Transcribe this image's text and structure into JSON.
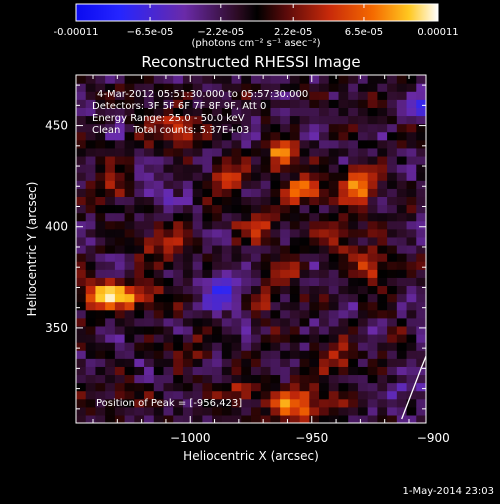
{
  "chart_data": {
    "type": "heatmap",
    "title": "Reconstructed RHESSI Image",
    "xlabel": "Heliocentric X (arcsec)",
    "ylabel": "Heliocentric Y (arcsec)",
    "xlim": [
      -1047,
      -903
    ],
    "ylim": [
      303,
      475
    ],
    "xticks": [
      -1000,
      -950,
      -900
    ],
    "xtick_labels": [
      "−1000",
      "−950",
      "−900"
    ],
    "yticks": [
      350,
      400,
      450
    ],
    "ytick_labels": [
      "350",
      "400",
      "450"
    ],
    "colorbar": {
      "min": -0.00011,
      "max": 0.00011,
      "tick_values": [
        -0.00011,
        -6.5e-05,
        -2.2e-05,
        2.2e-05,
        6.5e-05,
        0.00011
      ],
      "tick_labels": [
        "-0.00011",
        "−6.5e-05",
        "−2.2e-05",
        "2.2e-05",
        "6.5e-05",
        "0.00011"
      ],
      "unit": "(photons cm⁻² s⁻¹ asec⁻²)"
    },
    "annotations": [
      "4-Mar-2012 05:51:30.000 to 05:57:30.000",
      "Detectors: 3F 5F 6F 7F 8F 9F, Att 0",
      "Energy Range: 25.0 - 50.0 keV",
      "Clean    Total counts: 5.37E+03"
    ],
    "peak_label": "Position of Peak = [-956,423]",
    "peak_position": [
      -956,
      423
    ],
    "limb_curve_points": [
      [
        -913,
        305
      ],
      [
        -905,
        330
      ],
      [
        -895,
        360
      ],
      [
        -887,
        390
      ],
      [
        -877,
        420
      ],
      [
        -868,
        450
      ],
      [
        -862,
        475
      ]
    ],
    "blobs": [
      {
        "x": -962,
        "y": 435,
        "sx": 4,
        "sy": 5,
        "a": 0.00011
      },
      {
        "x": -953,
        "y": 418,
        "sx": 6,
        "sy": 4,
        "a": 0.0001
      },
      {
        "x": -931,
        "y": 420,
        "sx": 5,
        "sy": 7,
        "a": 8e-05
      },
      {
        "x": -940,
        "y": 395,
        "sx": 5,
        "sy": 5,
        "a": 6e-05
      },
      {
        "x": -972,
        "y": 400,
        "sx": 6,
        "sy": 5,
        "a": 6e-05
      },
      {
        "x": -960,
        "y": 378,
        "sx": 5,
        "sy": 4,
        "a": 5e-05
      },
      {
        "x": -925,
        "y": 380,
        "sx": 5,
        "sy": 6,
        "a": 7e-05
      },
      {
        "x": -1005,
        "y": 448,
        "sx": 7,
        "sy": 5,
        "a": 7e-05
      },
      {
        "x": -985,
        "y": 425,
        "sx": 5,
        "sy": 6,
        "a": 6e-05
      },
      {
        "x": -1012,
        "y": 392,
        "sx": 6,
        "sy": 7,
        "a": 5e-05
      },
      {
        "x": -1027,
        "y": 366,
        "sx": 10,
        "sy": 5,
        "a": 9e-05
      },
      {
        "x": -1040,
        "y": 366,
        "sx": 5,
        "sy": 5,
        "a": 6e-05
      },
      {
        "x": -1032,
        "y": 420,
        "sx": 5,
        "sy": 6,
        "a": 5e-05
      },
      {
        "x": -970,
        "y": 365,
        "sx": 4,
        "sy": 5,
        "a": 5e-05
      },
      {
        "x": -940,
        "y": 335,
        "sx": 5,
        "sy": 6,
        "a": 6e-05
      },
      {
        "x": -955,
        "y": 312,
        "sx": 8,
        "sy": 6,
        "a": 9e-05
      },
      {
        "x": -980,
        "y": 318,
        "sx": 6,
        "sy": 5,
        "a": 5e-05
      },
      {
        "x": -1000,
        "y": 340,
        "sx": 5,
        "sy": 5,
        "a": 4e-05
      },
      {
        "x": -1028,
        "y": 316,
        "sx": 6,
        "sy": 5,
        "a": 3e-05
      },
      {
        "x": -915,
        "y": 345,
        "sx": 4,
        "sy": 5,
        "a": 3e-05
      },
      {
        "x": -895,
        "y": 398,
        "sx": 4,
        "sy": 4,
        "a": -8e-05
      },
      {
        "x": -900,
        "y": 350,
        "sx": 6,
        "sy": 8,
        "a": -4e-05
      },
      {
        "x": -985,
        "y": 370,
        "sx": 7,
        "sy": 7,
        "a": -5e-05
      },
      {
        "x": -1015,
        "y": 415,
        "sx": 4,
        "sy": 4,
        "a": -4e-05
      },
      {
        "x": -905,
        "y": 460,
        "sx": 5,
        "sy": 5,
        "a": -6e-05
      },
      {
        "x": -880,
        "y": 430,
        "sx": 5,
        "sy": 6,
        "a": -5e-05
      },
      {
        "x": -910,
        "y": 320,
        "sx": 6,
        "sy": 6,
        "a": -3e-05
      }
    ]
  },
  "footer": {
    "timestamp": "1-May-2014 23:03"
  }
}
